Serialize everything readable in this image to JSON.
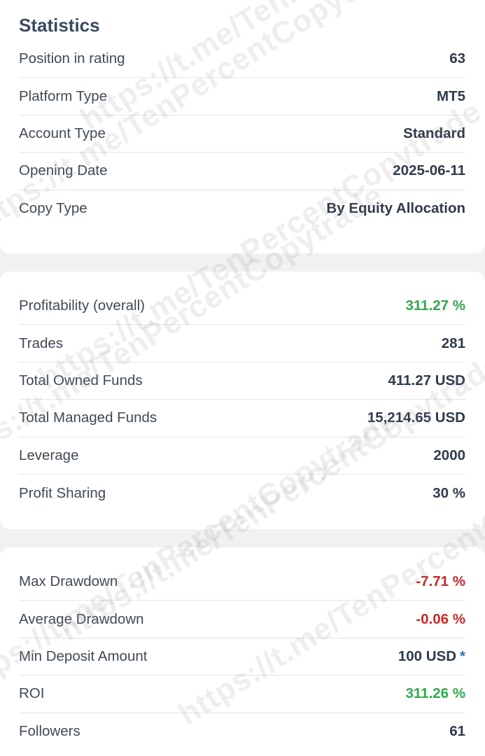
{
  "title": "Statistics",
  "watermark": "https://t.me/TenPercentCopytrade",
  "colors": {
    "positive": "#2eaa4a",
    "negative": "#c42a2a",
    "asterisk": "#2f6fb8"
  },
  "section1": [
    {
      "label": "Position in rating",
      "value": "63"
    },
    {
      "label": "Platform Type",
      "value": "MT5"
    },
    {
      "label": "Account Type",
      "value": "Standard"
    },
    {
      "label": "Opening Date",
      "value": "2025-06-11"
    },
    {
      "label": "Copy Type",
      "value": "By Equity Allocation"
    }
  ],
  "section2": [
    {
      "label": "Profitability (overall)",
      "value": "311.27 %",
      "tone": "green"
    },
    {
      "label": "Trades",
      "value": "281"
    },
    {
      "label": "Total Owned Funds",
      "value": "411.27 USD"
    },
    {
      "label": "Total Managed Funds",
      "value": "15,214.65 USD"
    },
    {
      "label": "Leverage",
      "value": "2000"
    },
    {
      "label": "Profit Sharing",
      "value": "30 %"
    }
  ],
  "section3": [
    {
      "label": "Max Drawdown",
      "value": "-7.71 %",
      "tone": "red"
    },
    {
      "label": "Average Drawdown",
      "value": "-0.06 %",
      "tone": "red"
    },
    {
      "label": "Min Deposit Amount",
      "value": "100 USD",
      "suffix": "*"
    },
    {
      "label": "ROI",
      "value": "311.26 %",
      "tone": "green"
    },
    {
      "label": "Followers",
      "value": "61"
    }
  ]
}
